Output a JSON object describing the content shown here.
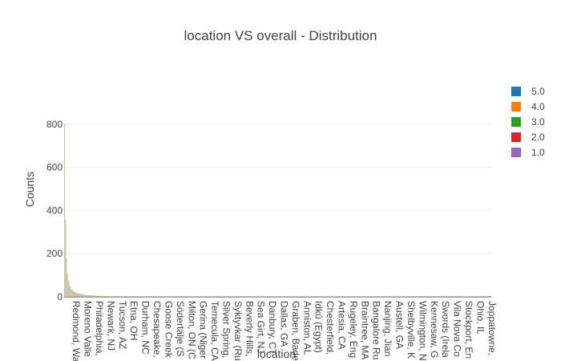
{
  "chart_data": {
    "type": "bar",
    "title": "location VS overall - Distribution",
    "xlabel": "location",
    "ylabel": "Counts",
    "ylim": [
      0,
      930
    ],
    "yticks": [
      0,
      200,
      400,
      600,
      800
    ],
    "grid": true,
    "barmode": "stack",
    "legend_position": "right",
    "legend": [
      {
        "name": "5.0",
        "color": "#1f77b4"
      },
      {
        "name": "4.0",
        "color": "#ff7f0e"
      },
      {
        "name": "3.0",
        "color": "#2ca02c"
      },
      {
        "name": "2.0",
        "color": "#d62728"
      },
      {
        "name": "1.0",
        "color": "#9467bd"
      }
    ],
    "tick_labels": [
      "Redmond, Wa",
      "Moreno Valle",
      "Philadelphia,",
      "Newark, NJ",
      "Tucson, AZ",
      "Etna, OH",
      "Durham, NC",
      "Chesapeake,",
      "Goose Creek",
      "Södertälje (S",
      "Milton, ON (C",
      "Gerina (Niger",
      "Temecula, CA",
      "Silver Spring,",
      "Syktyvkar (Ru",
      "Beverly Hills,",
      "Sea Girt, NJ",
      "Danbury, CT",
      "Dallas, GA",
      "Graben, Bade",
      "Anniston, AL",
      "Idkû (Egypt)",
      "Chesterfield,",
      "Artesia, CA",
      "Rugeley, Eng",
      "Braintree, MA",
      "Bangalore Ru",
      "Nanjing, Jian",
      "Austell, GA",
      "Shelbyville, K",
      "Wilmington, N",
      "Kennesaw, G",
      "Swords (Irela",
      "Vila Nova Co",
      "Stockport, En",
      "Ohio, IL",
      "Joppatowne,"
    ],
    "bar_totals_sample": [
      800,
      360,
      180,
      110,
      75,
      55,
      45,
      38,
      32,
      28,
      25,
      22,
      20,
      18,
      16,
      15,
      14,
      13,
      12,
      11,
      10,
      10,
      9,
      9,
      8,
      8,
      7,
      7,
      7,
      6,
      6,
      6,
      5,
      5,
      5,
      5,
      4,
      4,
      4,
      4,
      4,
      3,
      3,
      3,
      3,
      3,
      3,
      3,
      2,
      2
    ]
  }
}
